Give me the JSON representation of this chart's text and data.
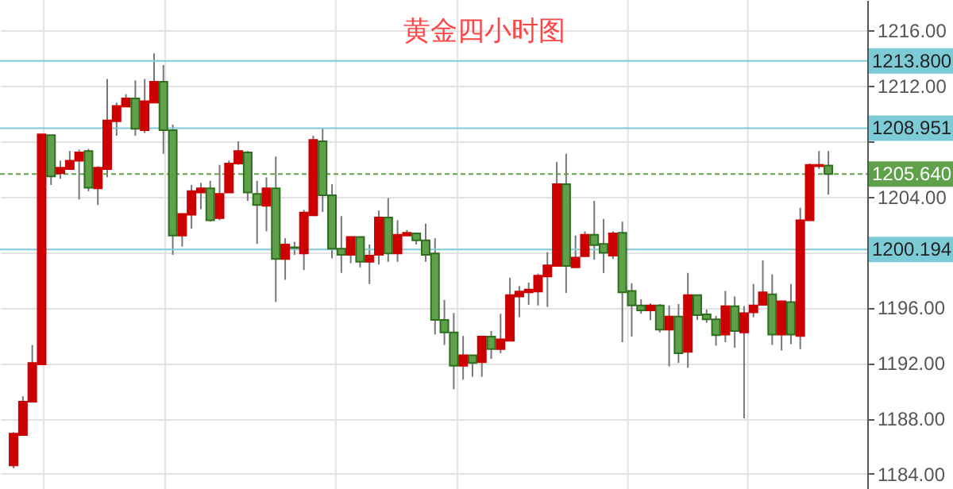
{
  "chart_data": {
    "type": "candlestick",
    "title": "黄金四小时图",
    "categories": [
      null,
      null,
      null,
      null,
      null,
      null,
      null,
      null,
      null,
      null,
      null,
      null,
      null,
      null,
      null,
      null,
      null,
      null,
      null,
      null,
      null,
      null,
      null,
      null,
      null,
      null,
      null,
      null,
      null,
      null,
      null,
      null,
      null,
      null,
      null,
      null,
      null,
      null,
      null,
      null,
      null,
      null,
      null,
      null,
      null,
      null,
      null,
      null,
      null,
      null,
      null,
      null,
      null,
      null,
      null,
      null,
      null,
      null,
      null,
      null,
      null,
      null,
      null,
      null,
      null,
      null,
      null,
      null,
      null,
      null,
      null,
      null,
      null,
      null,
      null,
      null,
      null,
      null,
      null,
      null,
      null,
      null,
      null,
      null,
      null,
      null,
      null,
      null
    ],
    "ohlc": [
      [
        1184.6,
        1187.0,
        1184.4,
        1186.9
      ],
      [
        1186.8,
        1189.6,
        1186.8,
        1189.2
      ],
      [
        1189.2,
        1193.3,
        1189.2,
        1192.0
      ],
      [
        1191.9,
        1208.5,
        1191.9,
        1208.5
      ],
      [
        1208.45,
        1208.45,
        1204.85,
        1205.46
      ],
      [
        1205.7,
        1206.6,
        1205.3,
        1206.1
      ],
      [
        1206.0,
        1207.3,
        1206.0,
        1206.6
      ],
      [
        1206.6,
        1207.4,
        1203.8,
        1207.2
      ],
      [
        1207.3,
        1207.45,
        1204.4,
        1204.65
      ],
      [
        1204.6,
        1206.2,
        1203.4,
        1206.1
      ],
      [
        1206.0,
        1212.5,
        1205.4,
        1209.5
      ],
      [
        1209.45,
        1210.8,
        1208.4,
        1210.55
      ],
      [
        1210.5,
        1211.4,
        1210.5,
        1211.1
      ],
      [
        1211.1,
        1212.4,
        1208.4,
        1208.9
      ],
      [
        1208.8,
        1212.5,
        1208.6,
        1210.9
      ],
      [
        1210.8,
        1214.35,
        1210.8,
        1212.3
      ],
      [
        1212.3,
        1213.5,
        1207.1,
        1208.8
      ],
      [
        1208.8,
        1209.2,
        1199.8,
        1201.2
      ],
      [
        1201.2,
        1202.75,
        1200.4,
        1202.75
      ],
      [
        1202.7,
        1204.85,
        1201.7,
        1204.4
      ],
      [
        1204.3,
        1205.0,
        1203.1,
        1204.6
      ],
      [
        1204.6,
        1205.15,
        1202.2,
        1202.3
      ],
      [
        1202.45,
        1206.3,
        1202.3,
        1204.2
      ],
      [
        1204.3,
        1206.6,
        1204.3,
        1206.4
      ],
      [
        1206.4,
        1208.0,
        1206.3,
        1207.3
      ],
      [
        1207.2,
        1207.3,
        1203.7,
        1204.3
      ],
      [
        1204.2,
        1205.15,
        1200.6,
        1203.4
      ],
      [
        1203.35,
        1205.4,
        1201.5,
        1204.6
      ],
      [
        1204.6,
        1206.9,
        1196.4,
        1199.5
      ],
      [
        1199.5,
        1201.0,
        1198.0,
        1200.55
      ],
      [
        1200.35,
        1200.75,
        1199.8,
        1200.3
      ],
      [
        1199.9,
        1203.05,
        1198.7,
        1202.85
      ],
      [
        1202.65,
        1208.4,
        1202.6,
        1208.1
      ],
      [
        1208.0,
        1208.95,
        1202.9,
        1204.1
      ],
      [
        1204.1,
        1204.9,
        1199.55,
        1200.25
      ],
      [
        1200.25,
        1202.6,
        1198.5,
        1199.8
      ],
      [
        1199.8,
        1201.1,
        1199.2,
        1201.1
      ],
      [
        1201.1,
        1201.1,
        1198.9,
        1199.3
      ],
      [
        1199.3,
        1200.55,
        1197.7,
        1199.75
      ],
      [
        1199.8,
        1203.0,
        1199.1,
        1202.5
      ],
      [
        1202.5,
        1203.9,
        1199.3,
        1199.9
      ],
      [
        1199.9,
        1202.3,
        1199.3,
        1201.25
      ],
      [
        1201.2,
        1201.6,
        1201.2,
        1201.4
      ],
      [
        1201.35,
        1201.4,
        1200.55,
        1200.85
      ],
      [
        1200.85,
        1202.05,
        1199.3,
        1199.8
      ],
      [
        1199.9,
        1201.0,
        1194.05,
        1195.1
      ],
      [
        1195.1,
        1196.55,
        1193.3,
        1194.2
      ],
      [
        1194.2,
        1195.6,
        1190.1,
        1191.8
      ],
      [
        1191.8,
        1193.95,
        1190.8,
        1192.55
      ],
      [
        1192.55,
        1192.55,
        1191.0,
        1192.0
      ],
      [
        1192.05,
        1193.95,
        1191.0,
        1193.9
      ],
      [
        1193.9,
        1194.3,
        1192.3,
        1193.0
      ],
      [
        1193.0,
        1195.55,
        1192.7,
        1193.7
      ],
      [
        1193.6,
        1198.15,
        1193.6,
        1196.9
      ],
      [
        1196.8,
        1197.55,
        1195.3,
        1197.15
      ],
      [
        1197.1,
        1197.8,
        1196.2,
        1197.3
      ],
      [
        1197.15,
        1198.45,
        1196.15,
        1198.3
      ],
      [
        1198.25,
        1200.0,
        1196.05,
        1199.05
      ],
      [
        1199.0,
        1206.5,
        1199.0,
        1204.9
      ],
      [
        1204.9,
        1207.1,
        1197.05,
        1199.0
      ],
      [
        1198.9,
        1201.2,
        1198.9,
        1199.6
      ],
      [
        1199.7,
        1201.5,
        1199.7,
        1201.25
      ],
      [
        1201.25,
        1203.7,
        1199.45,
        1200.5
      ],
      [
        1200.6,
        1202.4,
        1198.5,
        1199.95
      ],
      [
        1199.75,
        1201.5,
        1199.5,
        1201.35
      ],
      [
        1201.4,
        1202.2,
        1193.5,
        1197.1
      ],
      [
        1197.2,
        1197.75,
        1193.9,
        1196.15
      ],
      [
        1196.15,
        1196.6,
        1195.55,
        1195.8
      ],
      [
        1195.8,
        1196.3,
        1195.1,
        1196.15
      ],
      [
        1196.15,
        1196.25,
        1194.2,
        1194.4
      ],
      [
        1194.4,
        1196.15,
        1191.75,
        1195.35
      ],
      [
        1195.35,
        1196.25,
        1192.0,
        1192.7
      ],
      [
        1192.8,
        1198.5,
        1191.65,
        1196.9
      ],
      [
        1196.9,
        1196.9,
        1195.1,
        1195.45
      ],
      [
        1195.5,
        1195.85,
        1194.9,
        1195.15
      ],
      [
        1195.15,
        1195.4,
        1193.25,
        1194.0
      ],
      [
        1194.05,
        1197.2,
        1193.5,
        1196.1
      ],
      [
        1196.1,
        1196.8,
        1193.1,
        1194.3
      ],
      [
        1194.2,
        1196.1,
        1188.0,
        1195.6
      ],
      [
        1195.65,
        1197.7,
        1195.3,
        1196.15
      ],
      [
        1196.2,
        1199.4,
        1196.2,
        1197.1
      ],
      [
        1196.95,
        1198.4,
        1193.3,
        1194.05
      ],
      [
        1194.05,
        1196.45,
        1192.9,
        1196.45
      ],
      [
        1196.4,
        1197.7,
        1193.35,
        1194.05
      ],
      [
        1193.95,
        1203.2,
        1193.0,
        1202.3
      ],
      [
        1202.3,
        1206.4,
        1202.3,
        1206.3
      ],
      [
        1206.2,
        1207.3,
        1206.0,
        1206.3
      ],
      [
        1206.25,
        1207.3,
        1204.15,
        1205.64
      ]
    ],
    "ylim": [
      1182.9,
      1218.2
    ],
    "yticks": [
      {
        "value": 1184,
        "label": "1184.00"
      },
      {
        "value": 1188,
        "label": "1188.00"
      },
      {
        "value": 1192,
        "label": "1192.00"
      },
      {
        "value": 1196,
        "label": "1196.00"
      },
      {
        "value": 1200,
        "label": null
      },
      {
        "value": 1204,
        "label": "1204.00"
      },
      {
        "value": 1208,
        "label": null
      },
      {
        "value": 1212,
        "label": "1212.00"
      },
      {
        "value": 1216,
        "label": "1216.00"
      }
    ],
    "ref_lines": [
      {
        "axis": "y",
        "value": 1213.8,
        "label": "1213.800",
        "color": "#7ecbd8",
        "line_style": "solid"
      },
      {
        "axis": "y",
        "value": 1208.951,
        "label": "1208.951",
        "color": "#7ecbd8",
        "line_style": "solid"
      },
      {
        "axis": "y",
        "value": 1205.64,
        "label": "1205.640",
        "color": "#5fa04a",
        "line_style": "dashed"
      },
      {
        "axis": "y",
        "value": 1200.194,
        "label": "1200.194",
        "color": "#7ecbd8",
        "line_style": "solid"
      }
    ],
    "grid": true
  }
}
